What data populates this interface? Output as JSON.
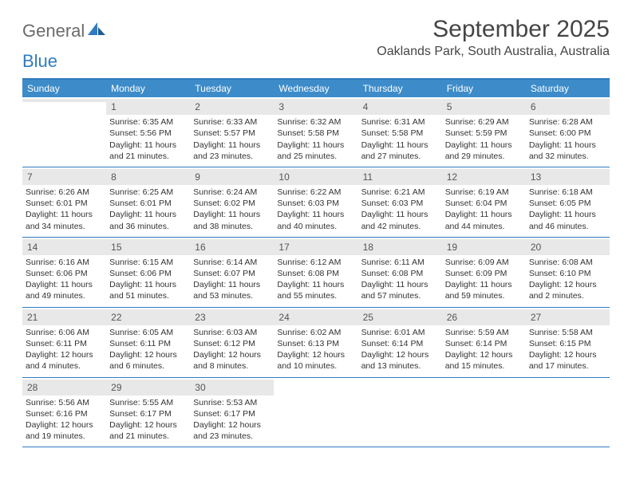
{
  "logo": {
    "general": "General",
    "blue": "Blue"
  },
  "title": "September 2025",
  "subtitle": "Oaklands Park, South Australia, Australia",
  "colors": {
    "header_bg": "#3d8cc9",
    "header_text": "#ffffff",
    "border": "#2f7bbf",
    "daystrip": "#e8e8e8",
    "text": "#333333",
    "title_text": "#454545"
  },
  "weekdays": [
    "Sunday",
    "Monday",
    "Tuesday",
    "Wednesday",
    "Thursday",
    "Friday",
    "Saturday"
  ],
  "weeks": [
    [
      {
        "n": "",
        "empty": true
      },
      {
        "n": "1",
        "sr": "Sunrise: 6:35 AM",
        "ss": "Sunset: 5:56 PM",
        "d1": "Daylight: 11 hours",
        "d2": "and 21 minutes."
      },
      {
        "n": "2",
        "sr": "Sunrise: 6:33 AM",
        "ss": "Sunset: 5:57 PM",
        "d1": "Daylight: 11 hours",
        "d2": "and 23 minutes."
      },
      {
        "n": "3",
        "sr": "Sunrise: 6:32 AM",
        "ss": "Sunset: 5:58 PM",
        "d1": "Daylight: 11 hours",
        "d2": "and 25 minutes."
      },
      {
        "n": "4",
        "sr": "Sunrise: 6:31 AM",
        "ss": "Sunset: 5:58 PM",
        "d1": "Daylight: 11 hours",
        "d2": "and 27 minutes."
      },
      {
        "n": "5",
        "sr": "Sunrise: 6:29 AM",
        "ss": "Sunset: 5:59 PM",
        "d1": "Daylight: 11 hours",
        "d2": "and 29 minutes."
      },
      {
        "n": "6",
        "sr": "Sunrise: 6:28 AM",
        "ss": "Sunset: 6:00 PM",
        "d1": "Daylight: 11 hours",
        "d2": "and 32 minutes."
      }
    ],
    [
      {
        "n": "7",
        "sr": "Sunrise: 6:26 AM",
        "ss": "Sunset: 6:01 PM",
        "d1": "Daylight: 11 hours",
        "d2": "and 34 minutes."
      },
      {
        "n": "8",
        "sr": "Sunrise: 6:25 AM",
        "ss": "Sunset: 6:01 PM",
        "d1": "Daylight: 11 hours",
        "d2": "and 36 minutes."
      },
      {
        "n": "9",
        "sr": "Sunrise: 6:24 AM",
        "ss": "Sunset: 6:02 PM",
        "d1": "Daylight: 11 hours",
        "d2": "and 38 minutes."
      },
      {
        "n": "10",
        "sr": "Sunrise: 6:22 AM",
        "ss": "Sunset: 6:03 PM",
        "d1": "Daylight: 11 hours",
        "d2": "and 40 minutes."
      },
      {
        "n": "11",
        "sr": "Sunrise: 6:21 AM",
        "ss": "Sunset: 6:03 PM",
        "d1": "Daylight: 11 hours",
        "d2": "and 42 minutes."
      },
      {
        "n": "12",
        "sr": "Sunrise: 6:19 AM",
        "ss": "Sunset: 6:04 PM",
        "d1": "Daylight: 11 hours",
        "d2": "and 44 minutes."
      },
      {
        "n": "13",
        "sr": "Sunrise: 6:18 AM",
        "ss": "Sunset: 6:05 PM",
        "d1": "Daylight: 11 hours",
        "d2": "and 46 minutes."
      }
    ],
    [
      {
        "n": "14",
        "sr": "Sunrise: 6:16 AM",
        "ss": "Sunset: 6:06 PM",
        "d1": "Daylight: 11 hours",
        "d2": "and 49 minutes."
      },
      {
        "n": "15",
        "sr": "Sunrise: 6:15 AM",
        "ss": "Sunset: 6:06 PM",
        "d1": "Daylight: 11 hours",
        "d2": "and 51 minutes."
      },
      {
        "n": "16",
        "sr": "Sunrise: 6:14 AM",
        "ss": "Sunset: 6:07 PM",
        "d1": "Daylight: 11 hours",
        "d2": "and 53 minutes."
      },
      {
        "n": "17",
        "sr": "Sunrise: 6:12 AM",
        "ss": "Sunset: 6:08 PM",
        "d1": "Daylight: 11 hours",
        "d2": "and 55 minutes."
      },
      {
        "n": "18",
        "sr": "Sunrise: 6:11 AM",
        "ss": "Sunset: 6:08 PM",
        "d1": "Daylight: 11 hours",
        "d2": "and 57 minutes."
      },
      {
        "n": "19",
        "sr": "Sunrise: 6:09 AM",
        "ss": "Sunset: 6:09 PM",
        "d1": "Daylight: 11 hours",
        "d2": "and 59 minutes."
      },
      {
        "n": "20",
        "sr": "Sunrise: 6:08 AM",
        "ss": "Sunset: 6:10 PM",
        "d1": "Daylight: 12 hours",
        "d2": "and 2 minutes."
      }
    ],
    [
      {
        "n": "21",
        "sr": "Sunrise: 6:06 AM",
        "ss": "Sunset: 6:11 PM",
        "d1": "Daylight: 12 hours",
        "d2": "and 4 minutes."
      },
      {
        "n": "22",
        "sr": "Sunrise: 6:05 AM",
        "ss": "Sunset: 6:11 PM",
        "d1": "Daylight: 12 hours",
        "d2": "and 6 minutes."
      },
      {
        "n": "23",
        "sr": "Sunrise: 6:03 AM",
        "ss": "Sunset: 6:12 PM",
        "d1": "Daylight: 12 hours",
        "d2": "and 8 minutes."
      },
      {
        "n": "24",
        "sr": "Sunrise: 6:02 AM",
        "ss": "Sunset: 6:13 PM",
        "d1": "Daylight: 12 hours",
        "d2": "and 10 minutes."
      },
      {
        "n": "25",
        "sr": "Sunrise: 6:01 AM",
        "ss": "Sunset: 6:14 PM",
        "d1": "Daylight: 12 hours",
        "d2": "and 13 minutes."
      },
      {
        "n": "26",
        "sr": "Sunrise: 5:59 AM",
        "ss": "Sunset: 6:14 PM",
        "d1": "Daylight: 12 hours",
        "d2": "and 15 minutes."
      },
      {
        "n": "27",
        "sr": "Sunrise: 5:58 AM",
        "ss": "Sunset: 6:15 PM",
        "d1": "Daylight: 12 hours",
        "d2": "and 17 minutes."
      }
    ],
    [
      {
        "n": "28",
        "sr": "Sunrise: 5:56 AM",
        "ss": "Sunset: 6:16 PM",
        "d1": "Daylight: 12 hours",
        "d2": "and 19 minutes."
      },
      {
        "n": "29",
        "sr": "Sunrise: 5:55 AM",
        "ss": "Sunset: 6:17 PM",
        "d1": "Daylight: 12 hours",
        "d2": "and 21 minutes."
      },
      {
        "n": "30",
        "sr": "Sunrise: 5:53 AM",
        "ss": "Sunset: 6:17 PM",
        "d1": "Daylight: 12 hours",
        "d2": "and 23 minutes."
      },
      {
        "n": "",
        "empty": true,
        "nostrip": true
      },
      {
        "n": "",
        "empty": true,
        "nostrip": true
      },
      {
        "n": "",
        "empty": true,
        "nostrip": true
      },
      {
        "n": "",
        "empty": true,
        "nostrip": true
      }
    ]
  ]
}
